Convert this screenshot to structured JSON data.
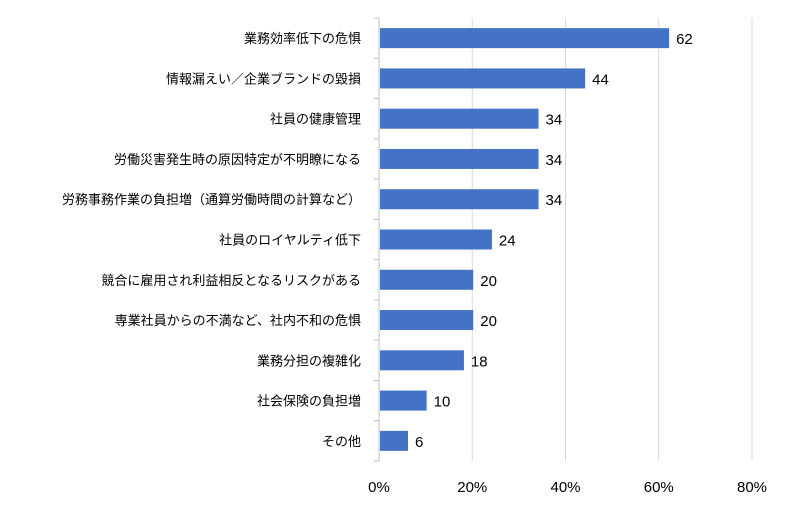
{
  "chart_data": {
    "type": "bar",
    "orientation": "horizontal",
    "categories": [
      "業務効率低下の危惧",
      "情報漏えい／企業ブランドの毀損",
      "社員の健康管理",
      "労働災害発生時の原因特定が不明瞭になる",
      "労務事務作業の負担増（通算労働時間の計算など）",
      "社員のロイヤルティ低下",
      "競合に雇用され利益相反となるリスクがある",
      "専業社員からの不満など、社内不和の危惧",
      "業務分担の複雑化",
      "社会保険の負担増",
      "その他"
    ],
    "values": [
      62,
      44,
      34,
      34,
      34,
      24,
      20,
      20,
      18,
      10,
      6
    ],
    "value_labels": [
      "62",
      "44",
      "34",
      "34",
      "34",
      "24",
      "20",
      "20",
      "18",
      "10",
      "6"
    ],
    "x_ticks": [
      "0%",
      "20%",
      "40%",
      "60%",
      "80%"
    ],
    "xlim": [
      0,
      80
    ],
    "grid": true,
    "bar_color": "#4472c4"
  }
}
